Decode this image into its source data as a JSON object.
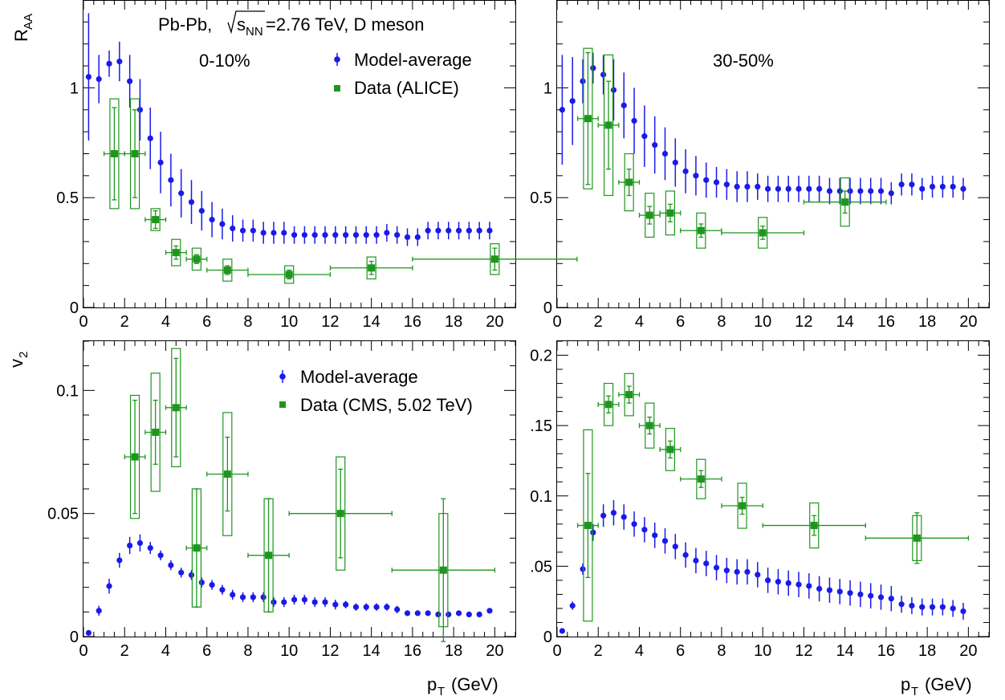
{
  "figure": {
    "collision_label": "Pb-Pb,",
    "sqrt_label": "s",
    "sqrt_sub": "NN",
    "energy_label": "=2.76 TeV, D meson",
    "raa_ylabel": "R",
    "raa_ylabel_sub": "AA",
    "v2_ylabel": "v",
    "v2_ylabel_sub": "2",
    "xlabel": "p",
    "xlabel_sub": "T",
    "xlabel_unit": "(GeV)"
  },
  "colors": {
    "model": "#1a1aea",
    "data": "#1e961e",
    "axis": "#000000"
  },
  "chart_data": [
    {
      "id": "raa_central",
      "type": "scatter",
      "centrality": "0-10%",
      "xlabel": "",
      "ylabel": "R_AA",
      "xlim": [
        0,
        21
      ],
      "ylim": [
        0,
        1.4
      ],
      "x_ticks": [
        "0",
        "2",
        "4",
        "6",
        "8",
        "10",
        "12",
        "14",
        "16",
        "18",
        "20"
      ],
      "y_ticks": [
        {
          "v": 0,
          "label": "0"
        },
        {
          "v": 0.5,
          "label": "0.5"
        },
        {
          "v": 1,
          "label": "1"
        }
      ],
      "legend": [
        {
          "label": "Model-average",
          "marker": "circle"
        },
        {
          "label": "Data (ALICE)",
          "marker": "square"
        }
      ],
      "legend_placement": "top-right",
      "series": [
        {
          "name": "Model-average",
          "marker": "circle",
          "x": [
            0.25,
            0.75,
            1.25,
            1.75,
            2.25,
            2.75,
            3.25,
            3.75,
            4.25,
            4.75,
            5.25,
            5.75,
            6.25,
            6.75,
            7.25,
            7.75,
            8.25,
            8.75,
            9.25,
            9.75,
            10.25,
            10.75,
            11.25,
            11.75,
            12.25,
            12.75,
            13.25,
            13.75,
            14.25,
            14.75,
            15.25,
            15.75,
            16.25,
            16.75,
            17.25,
            17.75,
            18.25,
            18.75,
            19.25,
            19.75
          ],
          "y": [
            1.05,
            1.04,
            1.11,
            1.12,
            1.03,
            0.9,
            0.77,
            0.66,
            0.58,
            0.52,
            0.48,
            0.44,
            0.4,
            0.38,
            0.36,
            0.35,
            0.35,
            0.34,
            0.34,
            0.34,
            0.33,
            0.33,
            0.33,
            0.33,
            0.33,
            0.33,
            0.33,
            0.33,
            0.33,
            0.34,
            0.33,
            0.32,
            0.32,
            0.35,
            0.35,
            0.35,
            0.35,
            0.35,
            0.35,
            0.35
          ],
          "yerr": [
            0.29,
            0.11,
            0.06,
            0.09,
            0.12,
            0.14,
            0.14,
            0.14,
            0.12,
            0.11,
            0.1,
            0.09,
            0.08,
            0.07,
            0.06,
            0.05,
            0.05,
            0.05,
            0.05,
            0.05,
            0.04,
            0.04,
            0.04,
            0.04,
            0.04,
            0.04,
            0.04,
            0.04,
            0.04,
            0.04,
            0.04,
            0.04,
            0.04,
            0.04,
            0.04,
            0.04,
            0.04,
            0.04,
            0.04,
            0.04
          ]
        },
        {
          "name": "Data (ALICE)",
          "marker": "square",
          "x": [
            1.5,
            2.5,
            3.5,
            4.5,
            5.5,
            7,
            10,
            14,
            20
          ],
          "xerr": [
            0.5,
            0.5,
            0.5,
            0.5,
            0.5,
            1,
            2,
            2,
            4
          ],
          "y": [
            0.7,
            0.7,
            0.4,
            0.25,
            0.22,
            0.17,
            0.15,
            0.18,
            0.22
          ],
          "yerr": [
            0.21,
            0.2,
            0.04,
            0.03,
            0.02,
            0.02,
            0.02,
            0.03,
            0.05
          ],
          "syst": [
            0.25,
            0.25,
            0.05,
            0.06,
            0.05,
            0.05,
            0.04,
            0.05,
            0.07
          ]
        }
      ]
    },
    {
      "id": "raa_peripheral",
      "type": "scatter",
      "centrality": "30-50%",
      "xlim": [
        0,
        21
      ],
      "ylim": [
        0,
        1.4
      ],
      "x_ticks": [
        "0",
        "2",
        "4",
        "6",
        "8",
        "10",
        "12",
        "14",
        "16",
        "18",
        "20"
      ],
      "y_ticks": [
        {
          "v": 0,
          "label": "0"
        },
        {
          "v": 0.5,
          "label": "0.5"
        },
        {
          "v": 1,
          "label": "1"
        }
      ],
      "series": [
        {
          "name": "Model-average",
          "marker": "circle",
          "x": [
            0.25,
            0.75,
            1.25,
            1.75,
            2.25,
            2.75,
            3.25,
            3.75,
            4.25,
            4.75,
            5.25,
            5.75,
            6.25,
            6.75,
            7.25,
            7.75,
            8.25,
            8.75,
            9.25,
            9.75,
            10.25,
            10.75,
            11.25,
            11.75,
            12.25,
            12.75,
            13.25,
            13.75,
            14.25,
            14.75,
            15.25,
            15.75,
            16.25,
            16.75,
            17.25,
            17.75,
            18.25,
            18.75,
            19.25,
            19.75
          ],
          "y": [
            0.9,
            0.94,
            1.03,
            1.09,
            1.06,
            0.99,
            0.92,
            0.85,
            0.78,
            0.74,
            0.7,
            0.66,
            0.62,
            0.6,
            0.58,
            0.57,
            0.56,
            0.55,
            0.55,
            0.55,
            0.54,
            0.54,
            0.54,
            0.54,
            0.54,
            0.54,
            0.53,
            0.53,
            0.53,
            0.53,
            0.53,
            0.53,
            0.52,
            0.56,
            0.56,
            0.54,
            0.55,
            0.55,
            0.55,
            0.54
          ],
          "yerr": [
            0.25,
            0.2,
            0.1,
            0.07,
            0.09,
            0.14,
            0.15,
            0.15,
            0.14,
            0.13,
            0.12,
            0.11,
            0.1,
            0.09,
            0.08,
            0.07,
            0.07,
            0.07,
            0.07,
            0.06,
            0.06,
            0.06,
            0.06,
            0.06,
            0.06,
            0.06,
            0.06,
            0.06,
            0.06,
            0.06,
            0.06,
            0.06,
            0.05,
            0.05,
            0.05,
            0.05,
            0.05,
            0.05,
            0.05,
            0.05
          ]
        },
        {
          "name": "Data (ALICE)",
          "marker": "square",
          "x": [
            1.5,
            2.5,
            3.5,
            4.5,
            5.5,
            7,
            10,
            14
          ],
          "xerr": [
            0.5,
            0.5,
            0.5,
            0.5,
            0.5,
            1,
            2,
            2
          ],
          "y": [
            0.86,
            0.83,
            0.57,
            0.42,
            0.43,
            0.35,
            0.34,
            0.48
          ],
          "yerr": [
            0.3,
            0.2,
            0.06,
            0.04,
            0.04,
            0.03,
            0.03,
            0.05
          ],
          "syst": [
            0.32,
            0.32,
            0.13,
            0.1,
            0.1,
            0.08,
            0.07,
            0.11
          ]
        }
      ]
    },
    {
      "id": "v2_central",
      "type": "scatter",
      "xlim": [
        0,
        21
      ],
      "ylim": [
        0,
        0.12
      ],
      "x_ticks": [
        "0",
        "2",
        "4",
        "6",
        "8",
        "10",
        "12",
        "14",
        "16",
        "18",
        "20"
      ],
      "y_ticks": [
        {
          "v": 0,
          "label": "0"
        },
        {
          "v": 0.05,
          "label": "0.05"
        },
        {
          "v": 0.1,
          "label": "0.1"
        }
      ],
      "legend": [
        {
          "label": "Model-average",
          "marker": "circle"
        },
        {
          "label": "Data (CMS, 5.02 TeV)",
          "marker": "square"
        }
      ],
      "legend_placement": "top-right",
      "series": [
        {
          "name": "Model-average",
          "marker": "circle",
          "x": [
            0.25,
            0.75,
            1.25,
            1.75,
            2.25,
            2.75,
            3.25,
            3.75,
            4.25,
            4.75,
            5.25,
            5.75,
            6.25,
            6.75,
            7.25,
            7.75,
            8.25,
            8.75,
            9.25,
            9.75,
            10.25,
            10.75,
            11.25,
            11.75,
            12.25,
            12.75,
            13.25,
            13.75,
            14.25,
            14.75,
            15.25,
            15.75,
            16.25,
            16.75,
            17.25,
            17.75,
            18.25,
            18.75,
            19.25,
            19.75
          ],
          "y": [
            0.0015,
            0.0105,
            0.0205,
            0.031,
            0.037,
            0.038,
            0.036,
            0.033,
            0.029,
            0.026,
            0.025,
            0.022,
            0.021,
            0.019,
            0.017,
            0.016,
            0.016,
            0.016,
            0.014,
            0.014,
            0.015,
            0.015,
            0.014,
            0.014,
            0.013,
            0.013,
            0.012,
            0.012,
            0.012,
            0.012,
            0.011,
            0.0095,
            0.0095,
            0.0095,
            0.009,
            0.009,
            0.0095,
            0.009,
            0.009,
            0.0105
          ],
          "yerr": [
            0.0008,
            0.002,
            0.003,
            0.003,
            0.0035,
            0.0035,
            0.0025,
            0.002,
            0.002,
            0.002,
            0.002,
            0.002,
            0.002,
            0.002,
            0.002,
            0.002,
            0.002,
            0.002,
            0.002,
            0.002,
            0.002,
            0.002,
            0.002,
            0.002,
            0.002,
            0.0015,
            0.0015,
            0.0015,
            0.0015,
            0.0015,
            0.0015,
            0.0008,
            0.0008,
            0.0008,
            0.0008,
            0.0008,
            0.0008,
            0.0008,
            0.0008,
            0.0008
          ]
        },
        {
          "name": "Data (CMS, 5.02 TeV)",
          "marker": "square",
          "x": [
            2.5,
            3.5,
            4.5,
            5.5,
            7,
            9,
            12.5,
            17.5
          ],
          "xerr": [
            0.5,
            0.5,
            0.5,
            0.5,
            1,
            1,
            2.5,
            2.5
          ],
          "y": [
            0.073,
            0.083,
            0.093,
            0.036,
            0.066,
            0.033,
            0.05,
            0.027
          ],
          "yerr": [
            0.023,
            0.013,
            0.02,
            0.024,
            0.015,
            0.023,
            0.018,
            0.029
          ],
          "syst": [
            0.025,
            0.024,
            0.024,
            0.024,
            0.025,
            0.023,
            0.023,
            0.023
          ]
        }
      ]
    },
    {
      "id": "v2_peripheral",
      "type": "scatter",
      "xlim": [
        0,
        21
      ],
      "ylim": [
        0,
        0.21
      ],
      "x_ticks": [
        "0",
        "2",
        "4",
        "6",
        "8",
        "10",
        "12",
        "14",
        "16",
        "18",
        "20"
      ],
      "y_ticks": [
        {
          "v": 0,
          "label": "0"
        },
        {
          "v": 0.05,
          "label": ".05"
        },
        {
          "v": 0.1,
          "label": "0.1"
        },
        {
          "v": 0.15,
          "label": ".15"
        },
        {
          "v": 0.2,
          "label": "0.2"
        }
      ],
      "series": [
        {
          "name": "Model-average",
          "marker": "circle",
          "x": [
            0.25,
            0.75,
            1.25,
            1.75,
            2.25,
            2.75,
            3.25,
            3.75,
            4.25,
            4.75,
            5.25,
            5.75,
            6.25,
            6.75,
            7.25,
            7.75,
            8.25,
            8.75,
            9.25,
            9.75,
            10.25,
            10.75,
            11.25,
            11.75,
            12.25,
            12.75,
            13.25,
            13.75,
            14.25,
            14.75,
            15.25,
            15.75,
            16.25,
            16.75,
            17.25,
            17.75,
            18.25,
            18.75,
            19.25,
            19.75
          ],
          "y": [
            0.004,
            0.022,
            0.048,
            0.074,
            0.086,
            0.088,
            0.085,
            0.08,
            0.076,
            0.072,
            0.068,
            0.064,
            0.058,
            0.054,
            0.052,
            0.049,
            0.047,
            0.046,
            0.046,
            0.044,
            0.04,
            0.039,
            0.038,
            0.037,
            0.036,
            0.034,
            0.033,
            0.032,
            0.031,
            0.03,
            0.029,
            0.028,
            0.027,
            0.023,
            0.022,
            0.021,
            0.021,
            0.021,
            0.02,
            0.018
          ],
          "yerr": [
            0.002,
            0.003,
            0.004,
            0.006,
            0.008,
            0.009,
            0.009,
            0.009,
            0.009,
            0.009,
            0.009,
            0.009,
            0.009,
            0.009,
            0.009,
            0.009,
            0.009,
            0.009,
            0.009,
            0.009,
            0.009,
            0.009,
            0.009,
            0.009,
            0.009,
            0.009,
            0.009,
            0.009,
            0.009,
            0.009,
            0.009,
            0.009,
            0.009,
            0.006,
            0.006,
            0.006,
            0.006,
            0.006,
            0.006,
            0.006
          ]
        },
        {
          "name": "Data (CMS, 5.02 TeV)",
          "marker": "square",
          "x": [
            1.5,
            2.5,
            3.5,
            4.5,
            5.5,
            7,
            9,
            12.5,
            17.5
          ],
          "xerr": [
            0.5,
            0.5,
            0.5,
            0.5,
            0.5,
            1,
            1,
            2.5,
            2.5
          ],
          "y": [
            0.079,
            0.165,
            0.172,
            0.15,
            0.133,
            0.112,
            0.093,
            0.079,
            0.07
          ],
          "yerr": [
            0.037,
            0.006,
            0.006,
            0.006,
            0.006,
            0.006,
            0.006,
            0.007,
            0.018
          ],
          "syst": [
            0.068,
            0.015,
            0.015,
            0.016,
            0.015,
            0.014,
            0.016,
            0.016,
            0.016
          ]
        }
      ]
    }
  ]
}
